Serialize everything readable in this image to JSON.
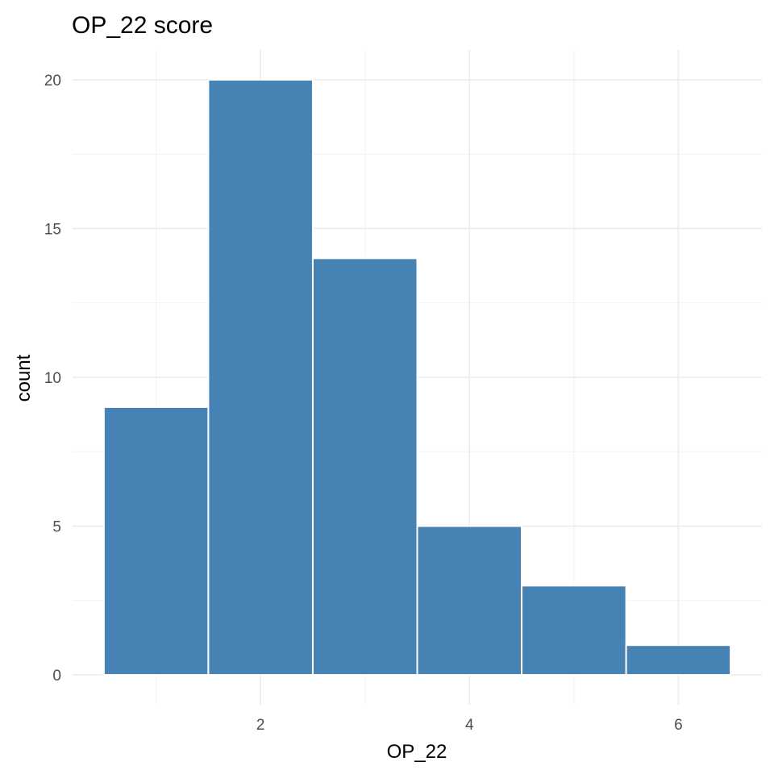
{
  "chart_data": {
    "type": "bar",
    "title": "OP_22 score",
    "xlabel": "OP_22",
    "ylabel": "count",
    "bins": [
      {
        "x": 1,
        "count": 9
      },
      {
        "x": 2,
        "count": 20
      },
      {
        "x": 3,
        "count": 14
      },
      {
        "x": 4,
        "count": 5
      },
      {
        "x": 5,
        "count": 3
      },
      {
        "x": 6,
        "count": 1
      }
    ],
    "binwidth": 1,
    "xlim": [
      0.5,
      6.5
    ],
    "ylim": [
      0,
      20
    ],
    "x_ticks": [
      2,
      4,
      6
    ],
    "y_ticks": [
      0,
      5,
      10,
      15,
      20
    ],
    "grid": true,
    "bar_color": "#4682B4",
    "bar_border_color": "#ffffff"
  }
}
